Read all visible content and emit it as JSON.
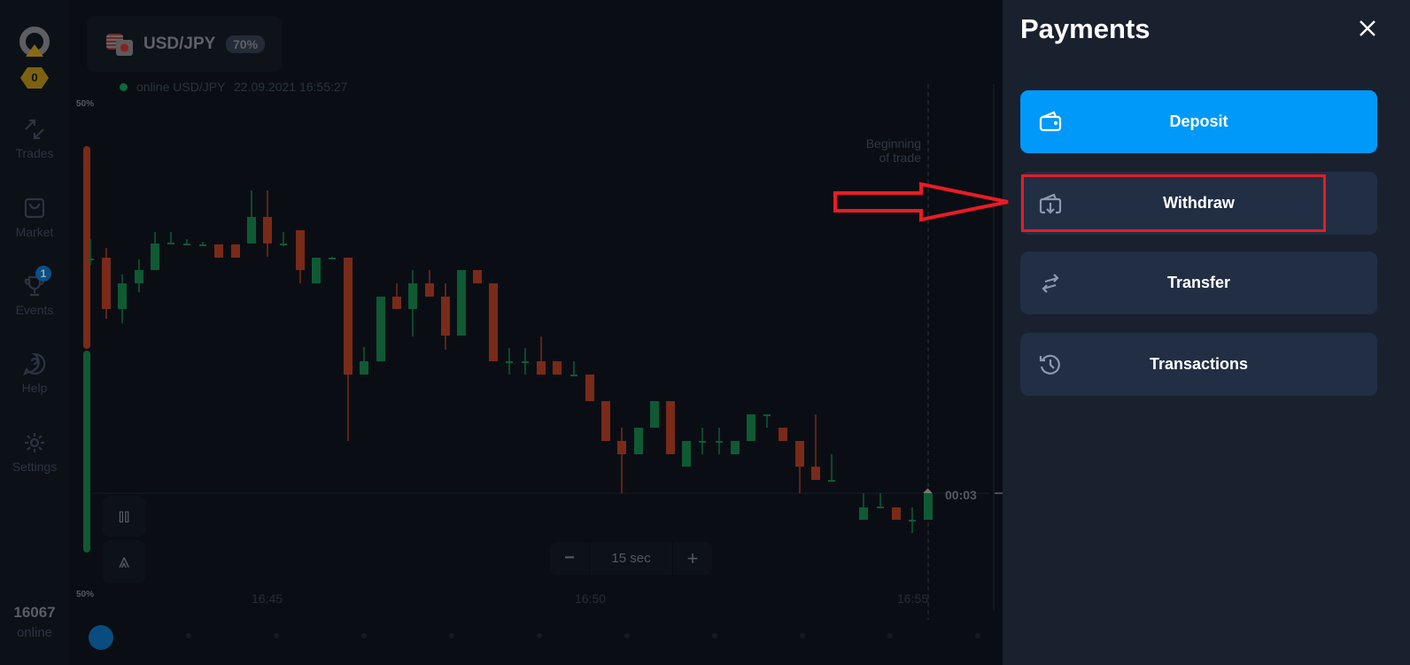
{
  "sidebar": {
    "level_badge": "0",
    "items": [
      {
        "label": "Trades",
        "icon": "arrows-icon"
      },
      {
        "label": "Market",
        "icon": "bag-icon"
      },
      {
        "label": "Events",
        "icon": "trophy-icon",
        "badge": "1"
      },
      {
        "label": "Help",
        "icon": "help-icon"
      },
      {
        "label": "Settings",
        "icon": "gear-icon"
      }
    ],
    "online_count": "16067",
    "online_label": "online"
  },
  "asset": {
    "name": "USD/JPY",
    "payout": "70%",
    "status": "online USD/JPY",
    "datetime": "22.09.2021 16:55:27"
  },
  "chart": {
    "top_percent": "50%",
    "bottom_percent": "50%",
    "trade_label_1": "Beginning",
    "trade_label_2": "of trade",
    "timer": "00:03",
    "x_ticks": [
      "16:45",
      "16:50",
      "16:55"
    ],
    "timeframe": "15 sec",
    "minus": "−",
    "plus": "+",
    "colors": {
      "up": "#0f5a33",
      "down": "#7a2a18"
    }
  },
  "payments": {
    "title": "Payments",
    "buttons": [
      {
        "label": "Deposit",
        "icon": "wallet-icon"
      },
      {
        "label": "Withdraw",
        "icon": "withdraw-icon"
      },
      {
        "label": "Transfer",
        "icon": "transfer-icon"
      },
      {
        "label": "Transactions",
        "icon": "history-icon"
      }
    ],
    "accent": "#0099fa",
    "highlight": "#e81c24"
  }
}
